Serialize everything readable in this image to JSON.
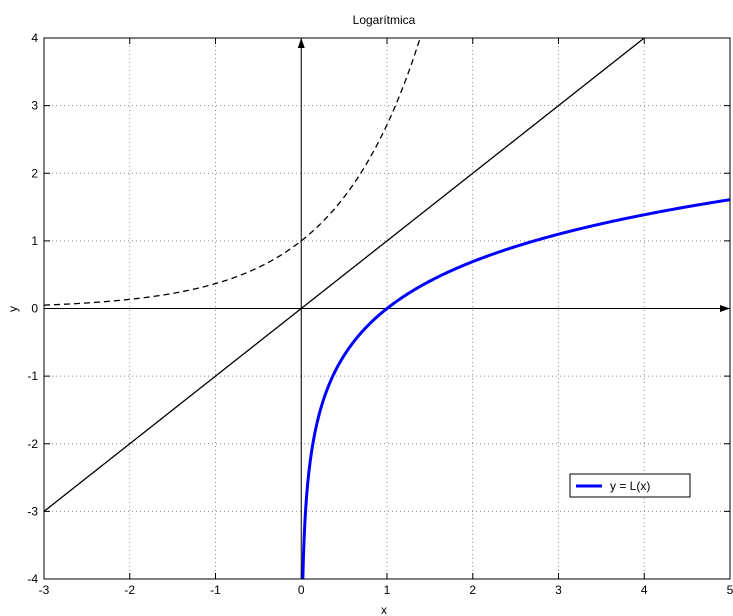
{
  "chart_data": {
    "type": "line",
    "title": "Logarítmica",
    "xlabel": "x",
    "ylabel": "y",
    "xlim": [
      -3,
      5
    ],
    "ylim": [
      -4,
      4
    ],
    "x_ticks": [
      -3,
      -2,
      -1,
      0,
      1,
      2,
      3,
      4,
      5
    ],
    "y_ticks": [
      -4,
      -3,
      -2,
      -1,
      0,
      1,
      2,
      3,
      4
    ],
    "grid": true,
    "legend_position": "bottom-right",
    "series": [
      {
        "name": "y = L(x)",
        "function": "ln(x)",
        "color": "#0000ff",
        "style": "solid",
        "in_legend": true,
        "x": [
          0.0183,
          0.03,
          0.05,
          0.1,
          0.2,
          0.3,
          0.5,
          0.7,
          1,
          1.5,
          2,
          2.5,
          3,
          3.5,
          4,
          4.5,
          5
        ],
        "y": [
          -4,
          -3.51,
          -3.0,
          -2.3,
          -1.61,
          -1.2,
          -0.69,
          -0.36,
          0,
          0.41,
          0.69,
          0.92,
          1.1,
          1.25,
          1.39,
          1.5,
          1.61
        ]
      },
      {
        "function": "e^x",
        "color": "#000000",
        "style": "dashed",
        "in_legend": false,
        "x": [
          -3,
          -2.5,
          -2,
          -1.5,
          -1,
          -0.5,
          0,
          0.25,
          0.5,
          0.75,
          1,
          1.2,
          1.386
        ],
        "y": [
          0.05,
          0.08,
          0.14,
          0.22,
          0.37,
          0.61,
          1,
          1.28,
          1.65,
          2.12,
          2.72,
          3.32,
          4
        ]
      },
      {
        "function": "x",
        "color": "#000000",
        "style": "solid",
        "in_legend": false,
        "x": [
          -3,
          4
        ],
        "y": [
          -3,
          4
        ]
      }
    ]
  }
}
